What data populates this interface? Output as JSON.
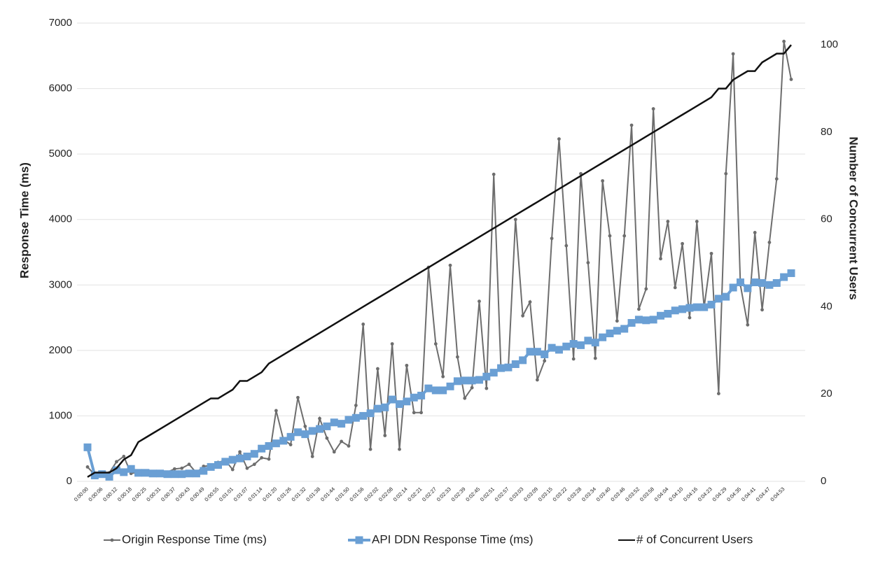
{
  "chart_data": {
    "type": "line",
    "y_label": "Response Time (ms)",
    "y2_label": "Number of Concurrent Users",
    "categories": [
      "0:00:00",
      null,
      "0:00:06",
      null,
      "0:00:12",
      null,
      "0:00:18",
      null,
      "0:00:25",
      null,
      "0:00:31",
      null,
      "0:00:37",
      null,
      "0:00:43",
      null,
      "0:00:49",
      null,
      "0:00:55",
      null,
      "0:01:01",
      null,
      "0:01:07",
      null,
      "0:01:14",
      null,
      "0:01:20",
      null,
      "0:01:26",
      null,
      "0:01:32",
      null,
      "0:01:38",
      null,
      "0:01:44",
      null,
      "0:01:50",
      null,
      "0:01:56",
      null,
      "0:02:02",
      null,
      "0:02:08",
      null,
      "0:02:14",
      null,
      "0:02:21",
      null,
      "0:02:27",
      null,
      "0:02:33",
      null,
      "0:02:39",
      null,
      "0:02:45",
      null,
      "0:02:51",
      null,
      "0:02:57",
      null,
      "0:03:03",
      null,
      "0:03:09",
      null,
      "0:03:15",
      null,
      "0:03:22",
      null,
      "0:03:28",
      null,
      "0:03:34",
      null,
      "0:03:40",
      null,
      "0:03:46",
      null,
      "0:03:52",
      null,
      "0:03:58",
      null,
      "0:04:04",
      null,
      "0:04:10",
      null,
      "0:04:16",
      null,
      "0:04:23",
      null,
      "0:04:29",
      null,
      "0:04:35",
      null,
      "0:04:41",
      null,
      "0:04:47",
      null,
      "0:04:53",
      null
    ],
    "series": [
      {
        "name": "Origin Response Time (ms)",
        "color": "#6d6d6d",
        "marker": "circle",
        "values": [
          220,
          100,
          120,
          130,
          300,
          380,
          120,
          140,
          130,
          110,
          120,
          140,
          190,
          200,
          260,
          130,
          230,
          240,
          290,
          320,
          180,
          450,
          200,
          260,
          360,
          340,
          1080,
          640,
          560,
          1280,
          840,
          380,
          960,
          660,
          450,
          610,
          540,
          1160,
          2400,
          490,
          1720,
          700,
          2100,
          490,
          1770,
          1050,
          1050,
          3270,
          2100,
          1600,
          3300,
          1900,
          1270,
          1430,
          2750,
          1420,
          4690,
          1700,
          1720,
          4000,
          2530,
          2740,
          1550,
          1840,
          3710,
          5230,
          3600,
          1870,
          4700,
          3340,
          1880,
          4590,
          3750,
          2450,
          3750,
          5440,
          2630,
          2940,
          5690,
          3400,
          3970,
          2960,
          3630,
          2500,
          3970,
          2660,
          3480,
          1340,
          4700,
          6530,
          3000,
          2390,
          3800,
          2620,
          3650,
          4620,
          6720,
          6140
        ]
      },
      {
        "name": "API DDN Response Time (ms)",
        "color": "#6a9fd4",
        "marker": "square",
        "values": [
          520,
          90,
          110,
          70,
          170,
          140,
          190,
          130,
          130,
          120,
          120,
          110,
          110,
          110,
          120,
          120,
          160,
          220,
          250,
          300,
          330,
          350,
          380,
          420,
          500,
          540,
          580,
          620,
          680,
          750,
          720,
          770,
          800,
          840,
          900,
          880,
          940,
          970,
          1000,
          1040,
          1110,
          1130,
          1250,
          1180,
          1220,
          1280,
          1310,
          1420,
          1390,
          1390,
          1450,
          1530,
          1540,
          1540,
          1550,
          1600,
          1660,
          1730,
          1740,
          1790,
          1850,
          1980,
          1980,
          1940,
          2040,
          2010,
          2060,
          2100,
          2080,
          2150,
          2120,
          2200,
          2260,
          2300,
          2330,
          2420,
          2470,
          2460,
          2470,
          2530,
          2560,
          2610,
          2630,
          2650,
          2660,
          2660,
          2700,
          2790,
          2820,
          2960,
          3040,
          2950,
          3040,
          3030,
          3000,
          3030,
          3120,
          3180
        ]
      },
      {
        "name": "# of Concurrent Users",
        "color": "#111111",
        "marker": "none",
        "axis": "y2",
        "values": [
          1,
          2,
          2,
          2,
          3,
          5,
          6,
          9,
          10,
          11,
          12,
          13,
          14,
          15,
          16,
          17,
          18,
          19,
          19,
          20,
          21,
          23,
          23,
          24,
          25,
          27,
          28,
          29,
          30,
          31,
          32,
          33,
          34,
          35,
          36,
          37,
          38,
          39,
          40,
          41,
          42,
          43,
          44,
          45,
          46,
          47,
          48,
          49,
          50,
          51,
          52,
          53,
          54,
          55,
          56,
          57,
          58,
          59,
          60,
          61,
          62,
          63,
          64,
          65,
          66,
          67,
          68,
          69,
          70,
          71,
          72,
          73,
          74,
          75,
          76,
          77,
          78,
          79,
          80,
          81,
          82,
          83,
          84,
          85,
          86,
          87,
          88,
          90,
          90,
          92,
          93,
          94,
          94,
          96,
          97,
          98,
          98,
          100
        ]
      }
    ],
    "ylim": [
      0,
      7000
    ],
    "yticks": [
      0,
      1000,
      2000,
      3000,
      4000,
      5000,
      6000,
      7000
    ],
    "y2lim": [
      0,
      105
    ],
    "y2ticks": [
      0,
      20,
      40,
      60,
      80,
      100
    ],
    "grid": true,
    "legend": "bottom"
  }
}
